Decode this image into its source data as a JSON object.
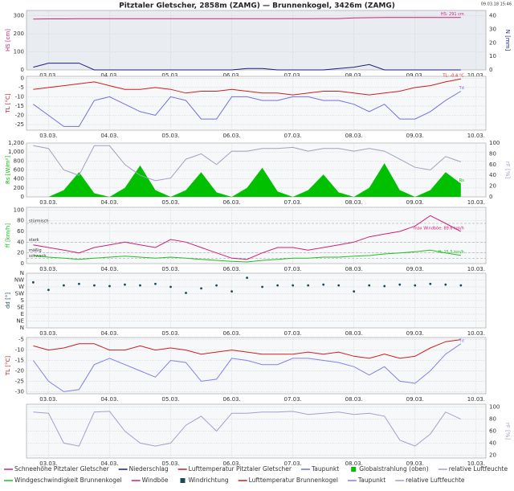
{
  "title": "Pitztaler Gletscher, 2858m (ZAMG) — Brunnenkogel, 3426m (ZAMG)",
  "timestamp": "09.03.18 15:46",
  "chart_data": [
    {
      "type": "line",
      "ylabel": "HS [cm]",
      "y2label": "N [mm]",
      "ylim": [
        0,
        330
      ],
      "yticks": [
        0,
        100,
        200,
        300
      ],
      "y2lim": [
        0,
        44
      ],
      "y2ticks": [
        0,
        10,
        20,
        30,
        40
      ],
      "grid": true,
      "xlim": [
        2.64,
        10.16
      ],
      "xticks": [
        {
          "value": 3,
          "label": "03.03."
        },
        {
          "value": 4,
          "label": "04.03."
        },
        {
          "value": 5,
          "label": "05.03."
        },
        {
          "value": 6,
          "label": "06.03."
        },
        {
          "value": 7,
          "label": "07.03."
        },
        {
          "value": 8,
          "label": "08.03."
        },
        {
          "value": 9,
          "label": "09.03."
        },
        {
          "value": 10,
          "label": "10.03."
        }
      ],
      "x": [
        2.75,
        3,
        3.25,
        3.5,
        3.75,
        4,
        4.25,
        4.5,
        4.75,
        5,
        5.25,
        5.5,
        5.75,
        6,
        6.25,
        6.5,
        6.75,
        7,
        7.25,
        7.5,
        7.75,
        8,
        8.25,
        8.5,
        8.75,
        9,
        9.25,
        9.5,
        9.75
      ],
      "series": [
        {
          "name": "Schneehöhe Pitztaler Gletscher",
          "color": "#d0207a",
          "end_label": "HS: 291 cm",
          "values": [
            282,
            283,
            283,
            284,
            284,
            284,
            284,
            284,
            284,
            284,
            284,
            284,
            284,
            284,
            284,
            284,
            284,
            284,
            284,
            285,
            285,
            289,
            290,
            291,
            291,
            291,
            291,
            291,
            291
          ]
        },
        {
          "name": "Niederschlag",
          "color": "#1c1c8a",
          "axis": "y2",
          "values": [
            2,
            5,
            5,
            5,
            0,
            0,
            0,
            0,
            0,
            0,
            0,
            0,
            0,
            0,
            1,
            1,
            0,
            0,
            0,
            0,
            1,
            2,
            4,
            0,
            0,
            0,
            0,
            0,
            0
          ]
        }
      ]
    },
    {
      "type": "line",
      "ylabel": "TL [°C]",
      "ylim": [
        -28,
        1
      ],
      "yticks": [
        0,
        -5,
        -10,
        -15,
        -20,
        -25
      ],
      "grid": true,
      "xlim": [
        2.64,
        10.16
      ],
      "xticks": [
        {
          "value": 3,
          "label": "03.03."
        },
        {
          "value": 4,
          "label": "04.03."
        },
        {
          "value": 5,
          "label": "05.03."
        },
        {
          "value": 6,
          "label": "06.03."
        },
        {
          "value": 7,
          "label": "07.03."
        },
        {
          "value": 8,
          "label": "08.03."
        },
        {
          "value": 9,
          "label": "09.03."
        },
        {
          "value": 10,
          "label": "10.03."
        }
      ],
      "x": [
        2.75,
        3,
        3.25,
        3.5,
        3.75,
        4,
        4.25,
        4.5,
        4.75,
        5,
        5.25,
        5.5,
        5.75,
        6,
        6.25,
        6.5,
        6.75,
        7,
        7.25,
        7.5,
        7.75,
        8,
        8.25,
        8.5,
        8.75,
        9,
        9.25,
        9.5,
        9.75
      ],
      "series": [
        {
          "name": "Lufttemperatur Pitztaler Gletscher",
          "color": "#d01c1c",
          "end_label": "TL: -0.4 °C",
          "values": [
            -6,
            -5,
            -4,
            -3,
            -2,
            -4,
            -6,
            -6,
            -5,
            -6,
            -8,
            -7,
            -7,
            -6,
            -7,
            -8,
            -8,
            -9,
            -8,
            -7,
            -7,
            -8,
            -9,
            -8,
            -7,
            -5,
            -4,
            -2,
            -0.4
          ]
        },
        {
          "name": "Taupunkt",
          "color": "#7070e0",
          "end_label": "Td",
          "values": [
            -14,
            -20,
            -26,
            -26,
            -12,
            -10,
            -14,
            -18,
            -20,
            -10,
            -12,
            -22,
            -22,
            -10,
            -10,
            -12,
            -12,
            -10,
            -10,
            -12,
            -12,
            -14,
            -18,
            -14,
            -22,
            -22,
            -18,
            -12,
            -7
          ]
        }
      ]
    },
    {
      "type": "line",
      "ylabel": "Rs [W/m²]",
      "y2label": "rF [%]",
      "ylim": [
        0,
        1200
      ],
      "yticks": [
        0,
        200,
        400,
        600,
        800,
        {
          "value": 1000,
          "label": "1,000"
        },
        {
          "value": 1200,
          "label": "1,200"
        }
      ],
      "y2lim": [
        0,
        100
      ],
      "y2ticks": [
        0,
        20,
        40,
        60,
        80,
        100
      ],
      "grid": true,
      "xlim": [
        2.64,
        10.16
      ],
      "xticks": [
        {
          "value": 3,
          "label": "03.03."
        },
        {
          "value": 4,
          "label": "04.03."
        },
        {
          "value": 5,
          "label": "05.03."
        },
        {
          "value": 6,
          "label": "06.03."
        },
        {
          "value": 7,
          "label": "07.03."
        },
        {
          "value": 8,
          "label": "08.03."
        },
        {
          "value": 9,
          "label": "09.03."
        },
        {
          "value": 10,
          "label": "10.03."
        }
      ],
      "x": [
        2.75,
        3,
        3.25,
        3.5,
        3.75,
        4,
        4.25,
        4.5,
        4.75,
        5,
        5.25,
        5.5,
        5.75,
        6,
        6.25,
        6.5,
        6.75,
        7,
        7.25,
        7.5,
        7.75,
        8,
        8.25,
        8.5,
        8.75,
        9,
        9.25,
        9.5,
        9.75
      ],
      "series": [
        {
          "name": "Globalstrahlung (oben)",
          "type": "area",
          "color": "#00c000",
          "end_label": "Rs",
          "values": [
            0,
            0,
            150,
            550,
            80,
            0,
            200,
            700,
            150,
            0,
            150,
            550,
            100,
            0,
            200,
            650,
            120,
            0,
            150,
            500,
            100,
            0,
            200,
            750,
            150,
            0,
            150,
            550,
            300
          ]
        },
        {
          "name": "relative Luftfeuchte",
          "color": "#a0a0c0",
          "axis": "y2",
          "values": [
            95,
            90,
            50,
            40,
            95,
            95,
            60,
            40,
            30,
            35,
            70,
            80,
            60,
            85,
            85,
            90,
            90,
            92,
            85,
            90,
            90,
            85,
            90,
            85,
            70,
            55,
            50,
            75,
            65
          ]
        }
      ]
    },
    {
      "type": "line",
      "ylabel": "ff [km/h]",
      "ylim": [
        0,
        105
      ],
      "yticks": [
        0,
        20,
        40,
        60,
        80,
        100
      ],
      "grid": true,
      "reference_lines": [
        {
          "label": "stürmisch",
          "value": 75
        },
        {
          "label": "stark",
          "value": 40
        },
        {
          "label": "mäßig",
          "value": 20
        },
        {
          "label": "schwach",
          "value": 10
        }
      ],
      "xlim": [
        2.64,
        10.16
      ],
      "xticks": [
        {
          "value": 3,
          "label": "03.03."
        },
        {
          "value": 4,
          "label": "04.03."
        },
        {
          "value": 5,
          "label": "05.03."
        },
        {
          "value": 6,
          "label": "06.03."
        },
        {
          "value": 7,
          "label": "07.03."
        },
        {
          "value": 8,
          "label": "08.03."
        },
        {
          "value": 9,
          "label": "09.03."
        },
        {
          "value": 10,
          "label": "10.03."
        }
      ],
      "x": [
        2.75,
        3,
        3.25,
        3.5,
        3.75,
        4,
        4.25,
        4.5,
        4.75,
        5,
        5.25,
        5.5,
        5.75,
        6,
        6.25,
        6.5,
        6.75,
        7,
        7.25,
        7.5,
        7.75,
        8,
        8.25,
        8.5,
        8.75,
        9,
        9.25,
        9.5,
        9.75
      ],
      "series": [
        {
          "name": "Windgeschwindigkeit Brunnenkogel",
          "color": "#20c020",
          "end_label": "ff: 15.5 km/h",
          "values": [
            15,
            12,
            10,
            8,
            10,
            12,
            14,
            12,
            10,
            12,
            10,
            8,
            6,
            4,
            3,
            6,
            8,
            10,
            10,
            12,
            12,
            14,
            15,
            18,
            20,
            22,
            25,
            20,
            15.5
          ]
        },
        {
          "name": "Windböe",
          "color": "#d0207a",
          "end_label": "max Windböe: 89.6 km/h",
          "values": [
            35,
            30,
            25,
            20,
            30,
            35,
            40,
            35,
            30,
            45,
            40,
            30,
            20,
            10,
            8,
            20,
            30,
            30,
            25,
            30,
            35,
            40,
            50,
            55,
            60,
            70,
            89.6,
            75,
            60
          ]
        }
      ]
    },
    {
      "type": "scatter",
      "ylabel": "dd [°]",
      "ylim": [
        0,
        360
      ],
      "yticks": [
        {
          "value": 360,
          "label": "N"
        },
        {
          "value": 315,
          "label": "NW"
        },
        {
          "value": 270,
          "label": "W"
        },
        {
          "value": 225,
          "label": "SW"
        },
        {
          "value": 180,
          "label": "S"
        },
        {
          "value": 135,
          "label": "SE"
        },
        {
          "value": 90,
          "label": "E"
        },
        {
          "value": 45,
          "label": "NE"
        },
        {
          "value": 0,
          "label": "N"
        }
      ],
      "grid": true,
      "xlim": [
        2.64,
        10.16
      ],
      "xticks": [
        {
          "value": 3,
          "label": "03.03."
        },
        {
          "value": 4,
          "label": "04.03."
        },
        {
          "value": 5,
          "label": "05.03."
        },
        {
          "value": 6,
          "label": "06.03."
        },
        {
          "value": 7,
          "label": "07.03."
        },
        {
          "value": 8,
          "label": "08.03."
        },
        {
          "value": 9,
          "label": "09.03."
        },
        {
          "value": 10,
          "label": "10.03."
        }
      ],
      "x": [
        2.75,
        3,
        3.25,
        3.5,
        3.75,
        4,
        4.25,
        4.5,
        4.75,
        5,
        5.25,
        5.5,
        5.75,
        6,
        6.25,
        6.5,
        6.75,
        7,
        7.25,
        7.5,
        7.75,
        8,
        8.25,
        8.5,
        8.75,
        9,
        9.25,
        9.5,
        9.75
      ],
      "series": [
        {
          "name": "Windrichtung",
          "color": "#1a4a5a",
          "values": [
            300,
            250,
            280,
            290,
            280,
            275,
            285,
            280,
            290,
            270,
            230,
            260,
            280,
            240,
            330,
            270,
            280,
            280,
            280,
            285,
            280,
            240,
            280,
            275,
            285,
            280,
            290,
            285,
            280
          ]
        }
      ]
    },
    {
      "type": "line",
      "ylabel": "TL [°C]",
      "ylim": [
        -31,
        -4
      ],
      "yticks": [
        -5,
        -10,
        -15,
        -20,
        -25,
        -30
      ],
      "grid": true,
      "xlim": [
        2.64,
        10.16
      ],
      "xticks": [
        {
          "value": 3,
          "label": "03.03."
        },
        {
          "value": 4,
          "label": "04.03."
        },
        {
          "value": 5,
          "label": "05.03."
        },
        {
          "value": 6,
          "label": "06.03."
        },
        {
          "value": 7,
          "label": "07.03."
        },
        {
          "value": 8,
          "label": "08.03."
        },
        {
          "value": 9,
          "label": "09.03."
        },
        {
          "value": 10,
          "label": "10.03."
        }
      ],
      "x": [
        2.75,
        3,
        3.25,
        3.5,
        3.75,
        4,
        4.25,
        4.5,
        4.75,
        5,
        5.25,
        5.5,
        5.75,
        6,
        6.25,
        6.5,
        6.75,
        7,
        7.25,
        7.5,
        7.75,
        8,
        8.25,
        8.5,
        8.75,
        9,
        9.25,
        9.5,
        9.75
      ],
      "series": [
        {
          "name": "Lufttemperatur Brunnenkogel",
          "color": "#d01c1c",
          "values": [
            -8,
            -10,
            -9,
            -7,
            -7,
            -10,
            -10,
            -8,
            -10,
            -9,
            -10,
            -12,
            -11,
            -10,
            -11,
            -12,
            -12,
            -12,
            -11,
            -12,
            -11,
            -13,
            -14,
            -12,
            -14,
            -13,
            -9,
            -6,
            -5
          ]
        },
        {
          "name": "Taupunkt",
          "color": "#8080f0",
          "end_label": "Td",
          "values": [
            -15,
            -25,
            -30,
            -29,
            -17,
            -14,
            -17,
            -20,
            -23,
            -15,
            -16,
            -25,
            -24,
            -14,
            -15,
            -17,
            -17,
            -14,
            -14,
            -15,
            -16,
            -18,
            -22,
            -18,
            -25,
            -26,
            -20,
            -12,
            -7
          ]
        }
      ]
    },
    {
      "type": "line",
      "y2label": "rF [%]",
      "y2lim": [
        15,
        105
      ],
      "y2ticks": [
        20,
        40,
        60,
        80,
        100
      ],
      "grid": true,
      "xlim": [
        2.64,
        10.16
      ],
      "xticks": [
        {
          "value": 3,
          "label": "03.03."
        },
        {
          "value": 4,
          "label": "04.03."
        },
        {
          "value": 5,
          "label": "05.03."
        },
        {
          "value": 6,
          "label": "06.03."
        },
        {
          "value": 7,
          "label": "07.03."
        },
        {
          "value": 8,
          "label": "08.03."
        },
        {
          "value": 9,
          "label": "09.03."
        },
        {
          "value": 10,
          "label": "10.03."
        }
      ],
      "x": [
        2.75,
        3,
        3.25,
        3.5,
        3.75,
        4,
        4.25,
        4.5,
        4.75,
        5,
        5.25,
        5.5,
        5.75,
        6,
        6.25,
        6.5,
        6.75,
        7,
        7.25,
        7.5,
        7.75,
        8,
        8.25,
        8.5,
        8.75,
        9,
        9.25,
        9.5,
        9.75
      ],
      "series": [
        {
          "name": "relative Luftfeuchte",
          "color": "#a0a0d0",
          "axis": "y2",
          "values": [
            92,
            90,
            40,
            35,
            92,
            93,
            60,
            40,
            35,
            40,
            70,
            85,
            60,
            90,
            90,
            92,
            92,
            93,
            88,
            90,
            92,
            88,
            90,
            85,
            45,
            35,
            55,
            92,
            80
          ]
        }
      ]
    }
  ]
}
